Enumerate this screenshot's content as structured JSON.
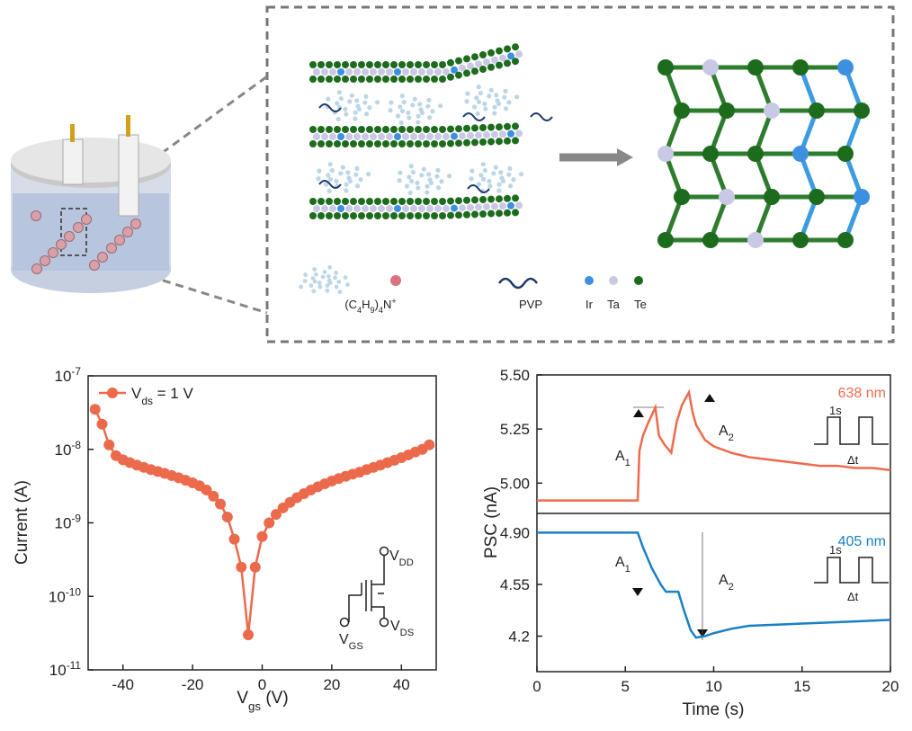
{
  "diagram": {
    "labels": [
      "(C4H9)4N+",
      "PVP",
      "Ir",
      "Ta",
      "Te"
    ]
  },
  "chart_data": [
    {
      "type": "line",
      "xlabel": "Vgs (V)",
      "ylabel": "Current (A)",
      "log_y": true,
      "xlim": [
        -50,
        50
      ],
      "xticks": [
        -40,
        -20,
        0,
        20,
        40
      ],
      "ylim": [
        1e-11,
        1e-07
      ],
      "yticks": [
        {
          "value": 1e-07,
          "label": "10-7"
        },
        {
          "value": 1e-08,
          "label": "10-8"
        },
        {
          "value": 1e-09,
          "label": "10-9"
        },
        {
          "value": 1e-10,
          "label": "10-10"
        },
        {
          "value": 1e-11,
          "label": "10-11"
        }
      ],
      "x": [
        -48,
        -46,
        -44,
        -42,
        -40,
        -38,
        -36,
        -34,
        -32,
        -30,
        -28,
        -26,
        -24,
        -22,
        -20,
        -18,
        -16,
        -14,
        -12,
        -10,
        -8,
        -6,
        -4,
        -2,
        0,
        2,
        4,
        6,
        8,
        10,
        12,
        14,
        16,
        18,
        20,
        22,
        24,
        26,
        28,
        30,
        32,
        34,
        36,
        38,
        40,
        42,
        44,
        46,
        48
      ],
      "series": [
        {
          "name": "Vds = 1 V",
          "color": "#ec6a4c",
          "values": [
            3.5e-08,
            2.2e-08,
            1.15e-08,
            8.2e-09,
            7.2e-09,
            6.6e-09,
            6.1e-09,
            5.7e-09,
            5.3e-09,
            5e-09,
            4.7e-09,
            4.4e-09,
            4.1e-09,
            3.8e-09,
            3.5e-09,
            3.2e-09,
            2.8e-09,
            2.3e-09,
            1.8e-09,
            1.2e-09,
            6e-10,
            2.5e-10,
            3e-11,
            2.5e-10,
            6.5e-10,
            1e-09,
            1.3e-09,
            1.6e-09,
            1.9e-09,
            2.2e-09,
            2.5e-09,
            2.8e-09,
            3.1e-09,
            3.4e-09,
            3.7e-09,
            4e-09,
            4.3e-09,
            4.6e-09,
            4.9e-09,
            5.3e-09,
            5.7e-09,
            6.1e-09,
            6.6e-09,
            7.1e-09,
            7.7e-09,
            8.4e-09,
            9.2e-09,
            1e-08,
            1.15e-08
          ]
        }
      ],
      "legend": "upper left",
      "annotations": [
        "VDD",
        "VGS",
        "VDS"
      ]
    },
    {
      "type": "line",
      "xlabel": "Time (s)",
      "ylabel": "PSC (nA)",
      "xlim": [
        0,
        20
      ],
      "xticks": [
        0,
        5,
        10,
        15,
        20
      ],
      "panels": [
        {
          "ylim": [
            4.86,
            5.5
          ],
          "yticks": [
            {
              "value": 5,
              "label": "5.00"
            },
            5.25,
            {
              "value": 5.5,
              "label": "5.50"
            }
          ],
          "x": [
            0,
            5.7,
            5.8,
            6.0,
            6.3,
            6.7,
            6.9,
            7.2,
            7.6,
            7.9,
            8.2,
            8.6,
            8.8,
            9.0,
            9.5,
            10,
            11,
            12,
            13,
            14,
            15,
            16,
            17,
            18,
            19,
            20
          ],
          "series": [
            {
              "name": "638 nm",
              "color": "#ef6a4c",
              "values": [
                4.92,
                4.92,
                5.15,
                5.22,
                5.28,
                5.35,
                5.22,
                5.18,
                5.14,
                5.28,
                5.36,
                5.42,
                5.33,
                5.27,
                5.2,
                5.17,
                5.14,
                5.12,
                5.11,
                5.1,
                5.09,
                5.08,
                5.08,
                5.07,
                5.07,
                5.06
              ]
            }
          ],
          "annotations": [
            "A1",
            "A2",
            "1s",
            "Δt"
          ]
        },
        {
          "ylim": [
            3.96,
            5.03
          ],
          "yticks": [
            4.2,
            4.55,
            {
              "value": 4.9,
              "label": "4.90"
            }
          ],
          "x": [
            0,
            5.7,
            6.0,
            6.5,
            7.0,
            7.3,
            7.6,
            8.0,
            8.3,
            8.7,
            9.0,
            9.5,
            10,
            11,
            12,
            14,
            16,
            18,
            20
          ],
          "series": [
            {
              "name": "405 nm",
              "color": "#1a80c4",
              "values": [
                4.9,
                4.9,
                4.8,
                4.66,
                4.55,
                4.5,
                4.5,
                4.5,
                4.38,
                4.24,
                4.19,
                4.2,
                4.22,
                4.25,
                4.27,
                4.28,
                4.29,
                4.3,
                4.31
              ]
            }
          ],
          "annotations": [
            "A1",
            "A2",
            "1s",
            "Δt"
          ]
        }
      ]
    }
  ]
}
